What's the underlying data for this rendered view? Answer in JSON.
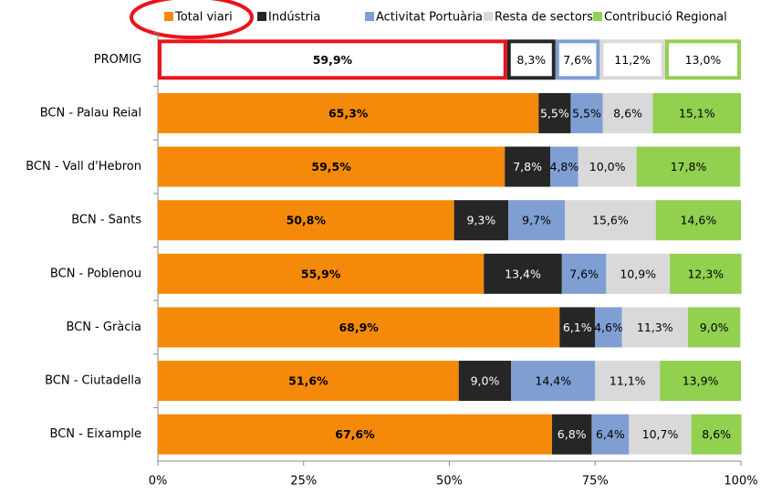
{
  "chart_data": {
    "type": "stacked-bar-horizontal",
    "categories": [
      "PROMIG",
      "BCN - Palau Reial",
      "BCN - Vall d'Hebron",
      "BCN - Sants",
      "BCN - Poblenou",
      "BCN - Gràcia",
      "BCN - Ciutadella",
      "BCN - Eixample"
    ],
    "series": [
      {
        "name": "Total viari",
        "color": "#f58a0a",
        "values": [
          59.9,
          65.3,
          59.5,
          50.8,
          55.9,
          68.9,
          51.6,
          67.6
        ],
        "value_labels": [
          "59,9%",
          "65,3%",
          "59,5%",
          "50,8%",
          "55,9%",
          "68,9%",
          "51,6%",
          "67,6%"
        ]
      },
      {
        "name": "Indústria",
        "color": "#262626",
        "values": [
          8.3,
          5.5,
          7.8,
          9.3,
          13.4,
          6.1,
          9.0,
          6.8
        ],
        "value_labels": [
          "8,3%",
          "5,5%",
          "7,8%",
          "9,3%",
          "13,4%",
          "6,1%",
          "9,0%",
          "6,8%"
        ]
      },
      {
        "name": "Activitat Portuària",
        "color": "#7f9fd2",
        "values": [
          7.6,
          5.5,
          4.8,
          9.7,
          7.6,
          4.6,
          14.4,
          6.4
        ],
        "value_labels": [
          "7,6%",
          "5,5%",
          "4,8%",
          "9,7%",
          "7,6%",
          "4,6%",
          "14,4%",
          "6,4%"
        ]
      },
      {
        "name": "Resta de sectors",
        "color": "#d9d9d9",
        "values": [
          11.2,
          8.6,
          10.0,
          15.6,
          10.9,
          11.3,
          11.1,
          10.7
        ],
        "value_labels": [
          "11,2%",
          "8,6%",
          "10,0%",
          "15,6%",
          "10,9%",
          "11,3%",
          "11,1%",
          "10,7%"
        ]
      },
      {
        "name": "Contribució Regional",
        "color": "#92d050",
        "values": [
          13.0,
          15.1,
          17.8,
          14.6,
          12.3,
          9.0,
          13.9,
          8.6
        ],
        "value_labels": [
          "13,0%",
          "15,1%",
          "17,8%",
          "14,6%",
          "12,3%",
          "9,0%",
          "13,9%",
          "8,6%"
        ]
      }
    ],
    "xlim": [
      0,
      100
    ],
    "xticks": [
      {
        "value": 0,
        "label": "0%"
      },
      {
        "value": 25,
        "label": "25%"
      },
      {
        "value": 50,
        "label": "50%"
      },
      {
        "value": 75,
        "label": "75%"
      },
      {
        "value": 100,
        "label": "100%"
      }
    ]
  }
}
